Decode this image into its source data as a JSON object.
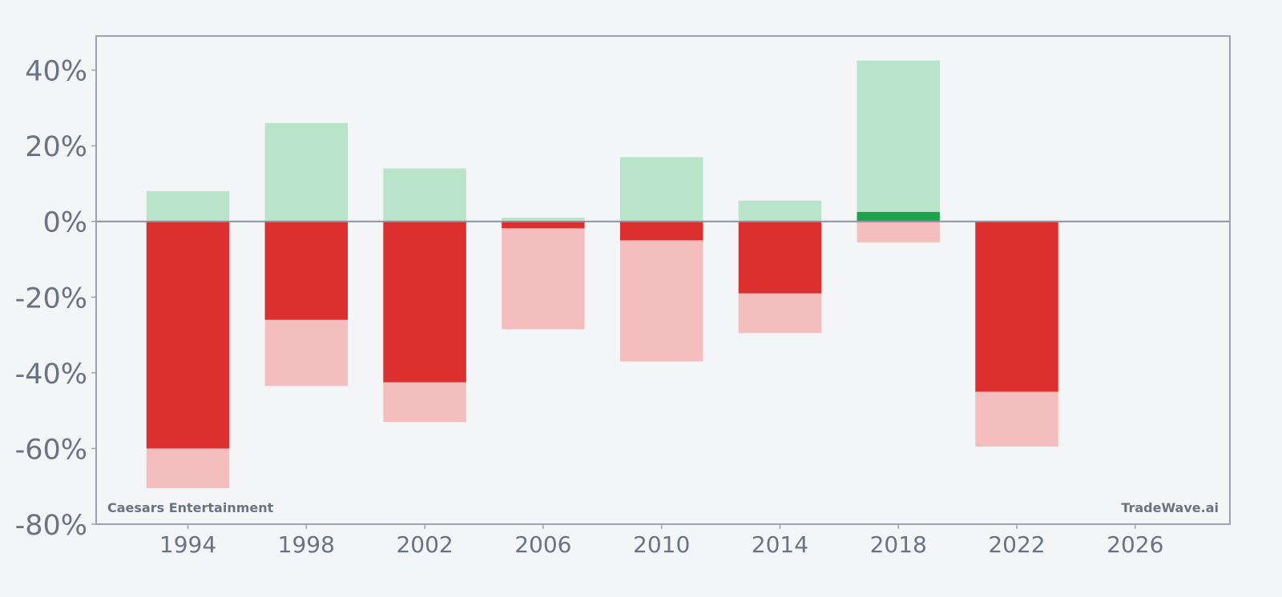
{
  "chart_data": {
    "type": "bar",
    "x": [
      1994,
      1998,
      2002,
      2006,
      2010,
      2014,
      2018,
      2022
    ],
    "series": [
      {
        "role": "high",
        "color": "#b9e4c9",
        "values": [
          8,
          26,
          14,
          1,
          17,
          5.5,
          42.5,
          0
        ]
      },
      {
        "role": "low",
        "color": "#f4bebe",
        "values": [
          -70.5,
          -43.5,
          -53,
          -28.5,
          -37,
          -29.5,
          -5.5,
          -59.5
        ]
      },
      {
        "role": "close",
        "color_pos": "#1fa34a",
        "color_neg": "#dc3030",
        "values": [
          -60,
          -26,
          -42.5,
          -1.8,
          -5,
          -19,
          2.5,
          -45
        ]
      }
    ],
    "ylim": [
      -80,
      49
    ],
    "xlim": [
      1990.9,
      2029.2
    ],
    "yticks": [
      40,
      20,
      0,
      -20,
      -40,
      -60,
      -80
    ],
    "ytick_labels": [
      "40%",
      "20%",
      "0%",
      "-20%",
      "-40%",
      "-60%",
      "-80%"
    ],
    "xticks": [
      1994,
      1998,
      2002,
      2006,
      2010,
      2014,
      2018,
      2022,
      2026
    ],
    "xtick_labels": [
      "1994",
      "1998",
      "2002",
      "2006",
      "2010",
      "2014",
      "2018",
      "2022",
      "2026"
    ],
    "bar_width_years": 2.8,
    "grid": false,
    "title": "",
    "xlabel": "",
    "ylabel": ""
  },
  "watermark": {
    "left": "Caesars Entertainment",
    "right": "TradeWave.ai"
  },
  "colors": {
    "axis": "#9ca3af",
    "zero_line": "#8b92a0",
    "text": "#6b7280",
    "background": "#f4f5f7"
  }
}
